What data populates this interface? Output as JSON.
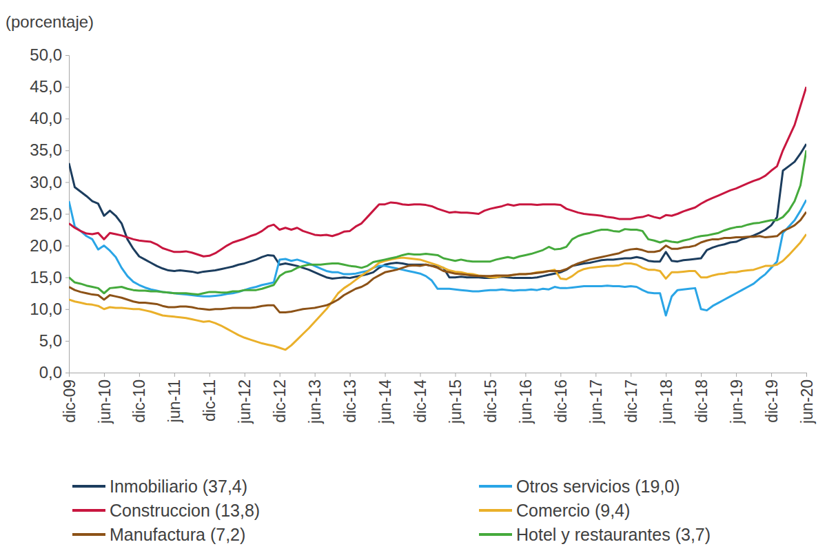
{
  "chart_data": {
    "type": "line",
    "y_label": "(porcentaje)",
    "categories": [
      "dic-09",
      null,
      null,
      null,
      null,
      null,
      "jun-10",
      null,
      null,
      null,
      null,
      null,
      "dic-10",
      null,
      null,
      null,
      null,
      null,
      "jun-11",
      null,
      null,
      null,
      null,
      null,
      "dic-11",
      null,
      null,
      null,
      null,
      null,
      "jun-12",
      null,
      null,
      null,
      null,
      null,
      "dic-12",
      null,
      null,
      null,
      null,
      null,
      "jun-13",
      null,
      null,
      null,
      null,
      null,
      "dic-13",
      null,
      null,
      null,
      null,
      null,
      "jun-14",
      null,
      null,
      null,
      null,
      null,
      "dic-14",
      null,
      null,
      null,
      null,
      null,
      "jun-15",
      null,
      null,
      null,
      null,
      null,
      "dic-15",
      null,
      null,
      null,
      null,
      null,
      "jun-16",
      null,
      null,
      null,
      null,
      null,
      "dic-16",
      null,
      null,
      null,
      null,
      null,
      "jun-17",
      null,
      null,
      null,
      null,
      null,
      "dic-17",
      null,
      null,
      null,
      null,
      null,
      "jun-18",
      null,
      null,
      null,
      null,
      null,
      "dic-18",
      null,
      null,
      null,
      null,
      null,
      "jun-19",
      null,
      null,
      null,
      null,
      null,
      "dic-19",
      null,
      null,
      null,
      null,
      null,
      "jun-20"
    ],
    "series": [
      {
        "name": "Inmobiliario (37,4)",
        "color": "#1c3d5e",
        "values": [
          33.0,
          29.2,
          28.5,
          27.8,
          27.0,
          26.6,
          24.7,
          25.5,
          24.7,
          23.5,
          21.0,
          19.5,
          18.3,
          17.8,
          17.3,
          16.8,
          16.4,
          16.1,
          16.0,
          16.1,
          16.0,
          15.9,
          15.7,
          15.9,
          16.0,
          16.1,
          16.3,
          16.5,
          16.7,
          17.0,
          17.2,
          17.5,
          17.8,
          18.2,
          18.5,
          18.4,
          17.0,
          17.2,
          17.0,
          16.8,
          16.5,
          16.2,
          15.8,
          15.4,
          15.0,
          14.8,
          14.9,
          15.0,
          14.9,
          15.1,
          15.3,
          15.5,
          15.8,
          16.5,
          17.0,
          17.2,
          17.3,
          17.2,
          17.0,
          17.0,
          17.0,
          17.0,
          16.8,
          16.8,
          16.5,
          15.0,
          15.0,
          15.1,
          15.0,
          15.0,
          15.0,
          14.9,
          14.9,
          15.0,
          15.1,
          15.0,
          14.9,
          14.9,
          14.9,
          14.9,
          15.0,
          15.2,
          15.4,
          15.6,
          15.8,
          16.2,
          16.8,
          17.0,
          17.2,
          17.3,
          17.5,
          17.7,
          17.8,
          17.8,
          17.9,
          18.0,
          18.0,
          18.2,
          18.0,
          17.6,
          17.5,
          17.5,
          19.0,
          17.6,
          17.5,
          17.7,
          17.8,
          17.9,
          18.0,
          19.3,
          19.7,
          20.0,
          20.2,
          20.5,
          20.6,
          21.0,
          21.3,
          21.6,
          22.0,
          22.5,
          23.2,
          24.5,
          31.8,
          32.5,
          33.2,
          34.5,
          36.0
        ]
      },
      {
        "name": "Otros servicios (19,0)",
        "color": "#2aa5e6",
        "values": [
          27.0,
          23.0,
          22.3,
          21.5,
          21.0,
          19.4,
          20.0,
          19.2,
          18.2,
          16.5,
          15.2,
          14.3,
          13.8,
          13.4,
          13.1,
          12.9,
          12.7,
          12.6,
          12.5,
          12.4,
          12.3,
          12.2,
          12.1,
          12.0,
          12.0,
          12.1,
          12.2,
          12.4,
          12.5,
          12.7,
          13.0,
          13.3,
          13.5,
          13.8,
          14.0,
          14.2,
          17.8,
          17.9,
          17.6,
          17.8,
          17.5,
          17.2,
          16.8,
          16.4,
          16.0,
          15.8,
          15.8,
          15.5,
          15.5,
          15.6,
          15.8,
          16.0,
          16.5,
          16.8,
          16.8,
          16.6,
          16.4,
          16.2,
          16.0,
          15.8,
          15.6,
          15.2,
          14.5,
          13.2,
          13.2,
          13.2,
          13.1,
          13.0,
          12.9,
          12.8,
          12.8,
          12.9,
          13.0,
          13.0,
          13.1,
          13.0,
          12.9,
          13.0,
          13.0,
          13.1,
          13.0,
          13.2,
          13.1,
          13.5,
          13.3,
          13.3,
          13.4,
          13.5,
          13.6,
          13.6,
          13.6,
          13.6,
          13.7,
          13.6,
          13.6,
          13.5,
          13.6,
          13.5,
          13.0,
          12.6,
          12.5,
          12.5,
          9.0,
          12.0,
          13.0,
          13.1,
          13.2,
          13.3,
          10.0,
          9.8,
          10.5,
          11.0,
          11.5,
          12.0,
          12.5,
          13.0,
          13.5,
          14.0,
          14.8,
          15.5,
          16.5,
          17.5,
          22.0,
          23.0,
          24.0,
          25.5,
          27.2
        ]
      },
      {
        "name": "Construccion (13,8)",
        "color": "#c8163f",
        "values": [
          23.5,
          22.8,
          22.3,
          21.9,
          21.8,
          22.0,
          21.0,
          22.0,
          21.8,
          21.6,
          21.3,
          21.0,
          20.8,
          20.7,
          20.6,
          20.2,
          19.6,
          19.3,
          19.0,
          19.0,
          19.1,
          18.9,
          18.6,
          18.3,
          18.4,
          18.8,
          19.4,
          20.0,
          20.5,
          20.8,
          21.1,
          21.5,
          21.8,
          22.3,
          23.0,
          23.3,
          22.5,
          22.8,
          22.5,
          22.8,
          22.3,
          22.0,
          21.7,
          21.6,
          21.7,
          21.5,
          21.8,
          22.2,
          22.3,
          23.0,
          23.5,
          24.5,
          25.5,
          26.5,
          26.5,
          26.8,
          26.7,
          26.5,
          26.4,
          26.5,
          26.5,
          26.4,
          26.2,
          25.8,
          25.5,
          25.2,
          25.3,
          25.2,
          25.2,
          25.1,
          25.0,
          25.5,
          25.8,
          26.0,
          26.2,
          26.5,
          26.3,
          26.5,
          26.5,
          26.5,
          26.4,
          26.5,
          26.5,
          26.5,
          26.4,
          25.8,
          25.5,
          25.2,
          25.0,
          24.9,
          24.8,
          24.7,
          24.5,
          24.4,
          24.2,
          24.2,
          24.2,
          24.4,
          24.5,
          24.8,
          24.5,
          24.3,
          24.8,
          24.7,
          25.0,
          25.4,
          25.7,
          26.0,
          26.6,
          27.1,
          27.5,
          27.9,
          28.3,
          28.7,
          29.0,
          29.4,
          29.8,
          30.2,
          30.5,
          31.0,
          31.8,
          32.5,
          35.0,
          37.0,
          39.0,
          42.0,
          45.0
        ]
      },
      {
        "name": "Comercio (9,4)",
        "color": "#eab02a",
        "values": [
          11.5,
          11.2,
          11.0,
          10.8,
          10.7,
          10.5,
          10.0,
          10.3,
          10.2,
          10.2,
          10.1,
          10.0,
          10.0,
          9.8,
          9.6,
          9.3,
          9.0,
          8.9,
          8.8,
          8.7,
          8.6,
          8.4,
          8.2,
          8.0,
          8.1,
          7.8,
          7.4,
          6.9,
          6.4,
          5.9,
          5.5,
          5.2,
          4.9,
          4.6,
          4.4,
          4.2,
          3.9,
          3.6,
          4.3,
          5.2,
          6.1,
          7.0,
          8.0,
          9.0,
          10.0,
          11.2,
          12.5,
          13.3,
          13.9,
          14.6,
          15.3,
          15.9,
          16.5,
          17.3,
          17.6,
          17.8,
          18.0,
          18.1,
          18.0,
          17.9,
          17.8,
          17.5,
          17.2,
          16.9,
          16.5,
          16.1,
          15.9,
          15.8,
          15.6,
          15.5,
          15.3,
          15.2,
          15.0,
          15.0,
          15.2,
          15.2,
          15.4,
          15.5,
          15.5,
          15.6,
          15.8,
          15.9,
          16.0,
          16.2,
          14.8,
          14.7,
          15.2,
          15.9,
          16.3,
          16.5,
          16.6,
          16.7,
          16.8,
          16.8,
          16.9,
          17.2,
          17.2,
          17.0,
          16.5,
          16.2,
          16.2,
          16.0,
          14.8,
          15.8,
          15.8,
          15.9,
          16.0,
          16.0,
          15.0,
          15.0,
          15.3,
          15.5,
          15.6,
          15.8,
          15.8,
          16.0,
          16.1,
          16.2,
          16.5,
          16.8,
          16.8,
          17.0,
          17.6,
          18.5,
          19.5,
          20.5,
          21.8
        ]
      },
      {
        "name": "Manufactura (7,2)",
        "color": "#8c5217",
        "values": [
          13.5,
          13.0,
          12.7,
          12.5,
          12.3,
          12.2,
          11.5,
          12.2,
          12.0,
          11.8,
          11.5,
          11.2,
          11.0,
          11.0,
          10.9,
          10.8,
          10.5,
          10.3,
          10.3,
          10.4,
          10.4,
          10.3,
          10.1,
          10.0,
          9.9,
          10.0,
          10.0,
          10.1,
          10.2,
          10.2,
          10.2,
          10.2,
          10.3,
          10.5,
          10.6,
          10.6,
          9.5,
          9.5,
          9.6,
          9.8,
          10.0,
          10.1,
          10.2,
          10.4,
          10.6,
          11.0,
          11.5,
          12.2,
          12.7,
          13.2,
          13.5,
          14.0,
          14.8,
          15.3,
          15.8,
          16.0,
          16.2,
          16.5,
          16.8,
          16.9,
          16.8,
          17.0,
          16.8,
          16.5,
          16.0,
          15.8,
          15.6,
          15.5,
          15.4,
          15.3,
          15.2,
          15.2,
          15.2,
          15.3,
          15.3,
          15.3,
          15.4,
          15.5,
          15.5,
          15.6,
          15.7,
          15.8,
          16.0,
          16.0,
          16.0,
          16.3,
          16.8,
          17.2,
          17.5,
          17.8,
          18.0,
          18.2,
          18.4,
          18.6,
          18.8,
          19.2,
          19.4,
          19.5,
          19.3,
          19.0,
          19.0,
          19.2,
          20.0,
          19.5,
          19.5,
          19.7,
          19.8,
          20.0,
          20.5,
          20.8,
          21.0,
          21.0,
          21.2,
          21.2,
          21.3,
          21.3,
          21.4,
          21.4,
          21.5,
          21.3,
          21.4,
          21.5,
          22.3,
          22.7,
          23.2,
          24.0,
          25.3
        ]
      },
      {
        "name": "Hotel y restaurantes (3,7)",
        "color": "#45aa3c",
        "values": [
          15.0,
          14.2,
          14.0,
          13.7,
          13.5,
          13.3,
          12.5,
          13.3,
          13.4,
          13.5,
          13.2,
          13.0,
          12.9,
          12.9,
          12.8,
          12.8,
          12.7,
          12.6,
          12.5,
          12.5,
          12.5,
          12.4,
          12.3,
          12.5,
          12.7,
          12.7,
          12.6,
          12.6,
          12.8,
          12.8,
          13.0,
          13.0,
          13.0,
          13.2,
          13.5,
          13.8,
          15.2,
          15.8,
          16.0,
          16.5,
          16.8,
          17.0,
          17.0,
          17.0,
          17.1,
          17.2,
          17.2,
          17.0,
          16.8,
          16.7,
          16.5,
          16.8,
          17.4,
          17.6,
          17.8,
          18.0,
          18.2,
          18.5,
          18.7,
          18.6,
          18.6,
          18.7,
          18.6,
          18.5,
          18.0,
          17.8,
          17.6,
          17.8,
          17.6,
          17.5,
          17.5,
          17.5,
          17.5,
          17.8,
          18.0,
          18.2,
          18.0,
          18.3,
          18.5,
          18.7,
          19.0,
          19.3,
          19.8,
          19.4,
          19.5,
          19.8,
          21.0,
          21.5,
          21.8,
          22.0,
          22.3,
          22.5,
          22.5,
          22.3,
          22.2,
          22.6,
          22.5,
          22.5,
          22.3,
          21.0,
          20.8,
          20.5,
          20.8,
          20.6,
          20.5,
          20.8,
          21.0,
          21.3,
          21.5,
          21.6,
          21.8,
          22.0,
          22.4,
          22.7,
          22.9,
          23.0,
          23.3,
          23.5,
          23.6,
          23.8,
          24.0,
          24.0,
          24.5,
          25.5,
          27.0,
          29.5,
          35.0
        ]
      }
    ],
    "ylim": [
      0,
      50
    ],
    "yticks": [
      {
        "value": 0,
        "label": "0,0"
      },
      {
        "value": 5,
        "label": "5,0"
      },
      {
        "value": 10,
        "label": "10,0"
      },
      {
        "value": 15,
        "label": "15,0"
      },
      {
        "value": 20,
        "label": "20,0"
      },
      {
        "value": 25,
        "label": "25,0"
      },
      {
        "value": 30,
        "label": "30,0"
      },
      {
        "value": 35,
        "label": "35,0"
      },
      {
        "value": 40,
        "label": "40,0"
      },
      {
        "value": 45,
        "label": "45,0"
      },
      {
        "value": 50,
        "label": "50,0"
      }
    ],
    "grid": false,
    "legend": "bottom"
  }
}
